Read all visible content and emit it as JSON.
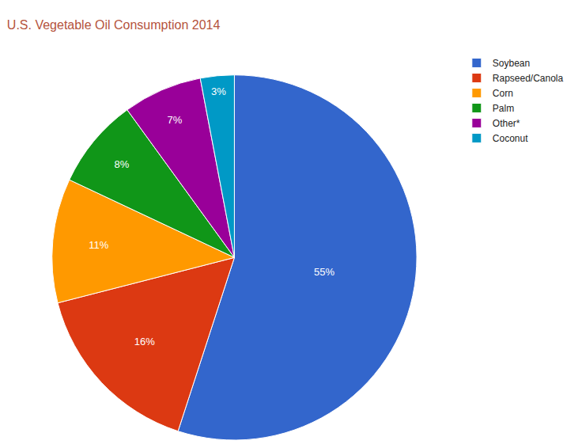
{
  "chart_data": {
    "type": "pie",
    "title": "U.S. Vegetable Oil Consumption 2014",
    "categories": [
      "Soybean",
      "Rapseed/Canola",
      "Corn",
      "Palm",
      "Other*",
      "Coconut"
    ],
    "values": [
      55,
      16,
      11,
      8,
      7,
      3
    ],
    "value_labels": [
      "55%",
      "16%",
      "11%",
      "8%",
      "7%",
      "3%"
    ],
    "colors": [
      "#3366cc",
      "#dc3912",
      "#ff9900",
      "#109618",
      "#990099",
      "#0099c6"
    ],
    "data_labels": true,
    "legend": "top-right"
  }
}
